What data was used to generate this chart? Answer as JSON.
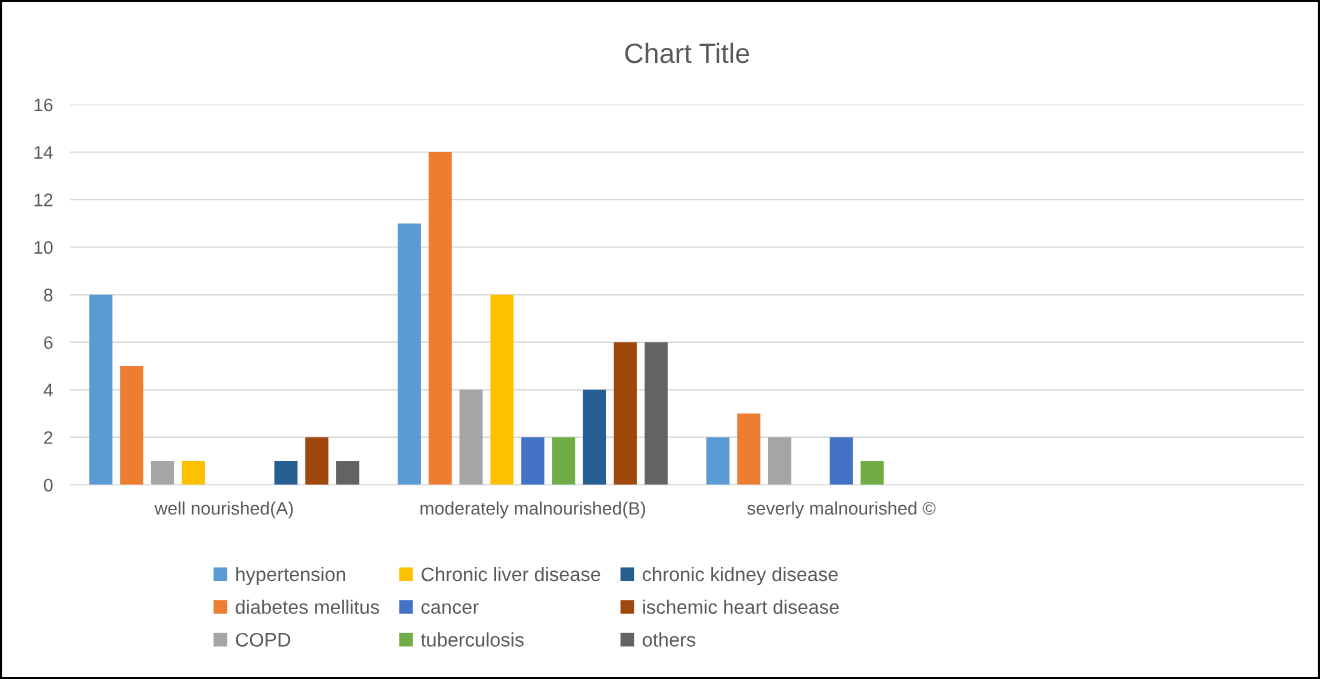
{
  "chart_data": {
    "type": "bar",
    "title": "Chart Title",
    "categories": [
      "well nourished(A)",
      "moderately malnourished(B)",
      "severly malnourished ©",
      null
    ],
    "series": [
      {
        "name": "hypertension",
        "color": "#5b9bd5",
        "values": [
          8,
          11,
          2,
          null
        ]
      },
      {
        "name": "diabetes mellitus",
        "color": "#ed7d31",
        "values": [
          5,
          14,
          3,
          null
        ]
      },
      {
        "name": "COPD",
        "color": "#a5a5a5",
        "values": [
          1,
          4,
          2,
          null
        ]
      },
      {
        "name": "Chronic liver disease",
        "color": "#ffc000",
        "values": [
          1,
          8,
          null,
          null
        ]
      },
      {
        "name": "cancer",
        "color": "#4472c4",
        "values": [
          null,
          2,
          2,
          null
        ]
      },
      {
        "name": "tuberculosis",
        "color": "#70ad47",
        "values": [
          null,
          2,
          1,
          null
        ]
      },
      {
        "name": "chronic kidney disease",
        "color": "#255e91",
        "values": [
          1,
          4,
          null,
          null
        ]
      },
      {
        "name": "ischemic heart disease",
        "color": "#9e480e",
        "values": [
          2,
          6,
          null,
          null
        ]
      },
      {
        "name": "others",
        "color": "#636363",
        "values": [
          1,
          6,
          null,
          null
        ]
      }
    ],
    "ylim": [
      0,
      16
    ],
    "yticks": [
      0,
      2,
      4,
      6,
      8,
      10,
      12,
      14,
      16
    ],
    "grid": "y",
    "legend": "bottom"
  }
}
